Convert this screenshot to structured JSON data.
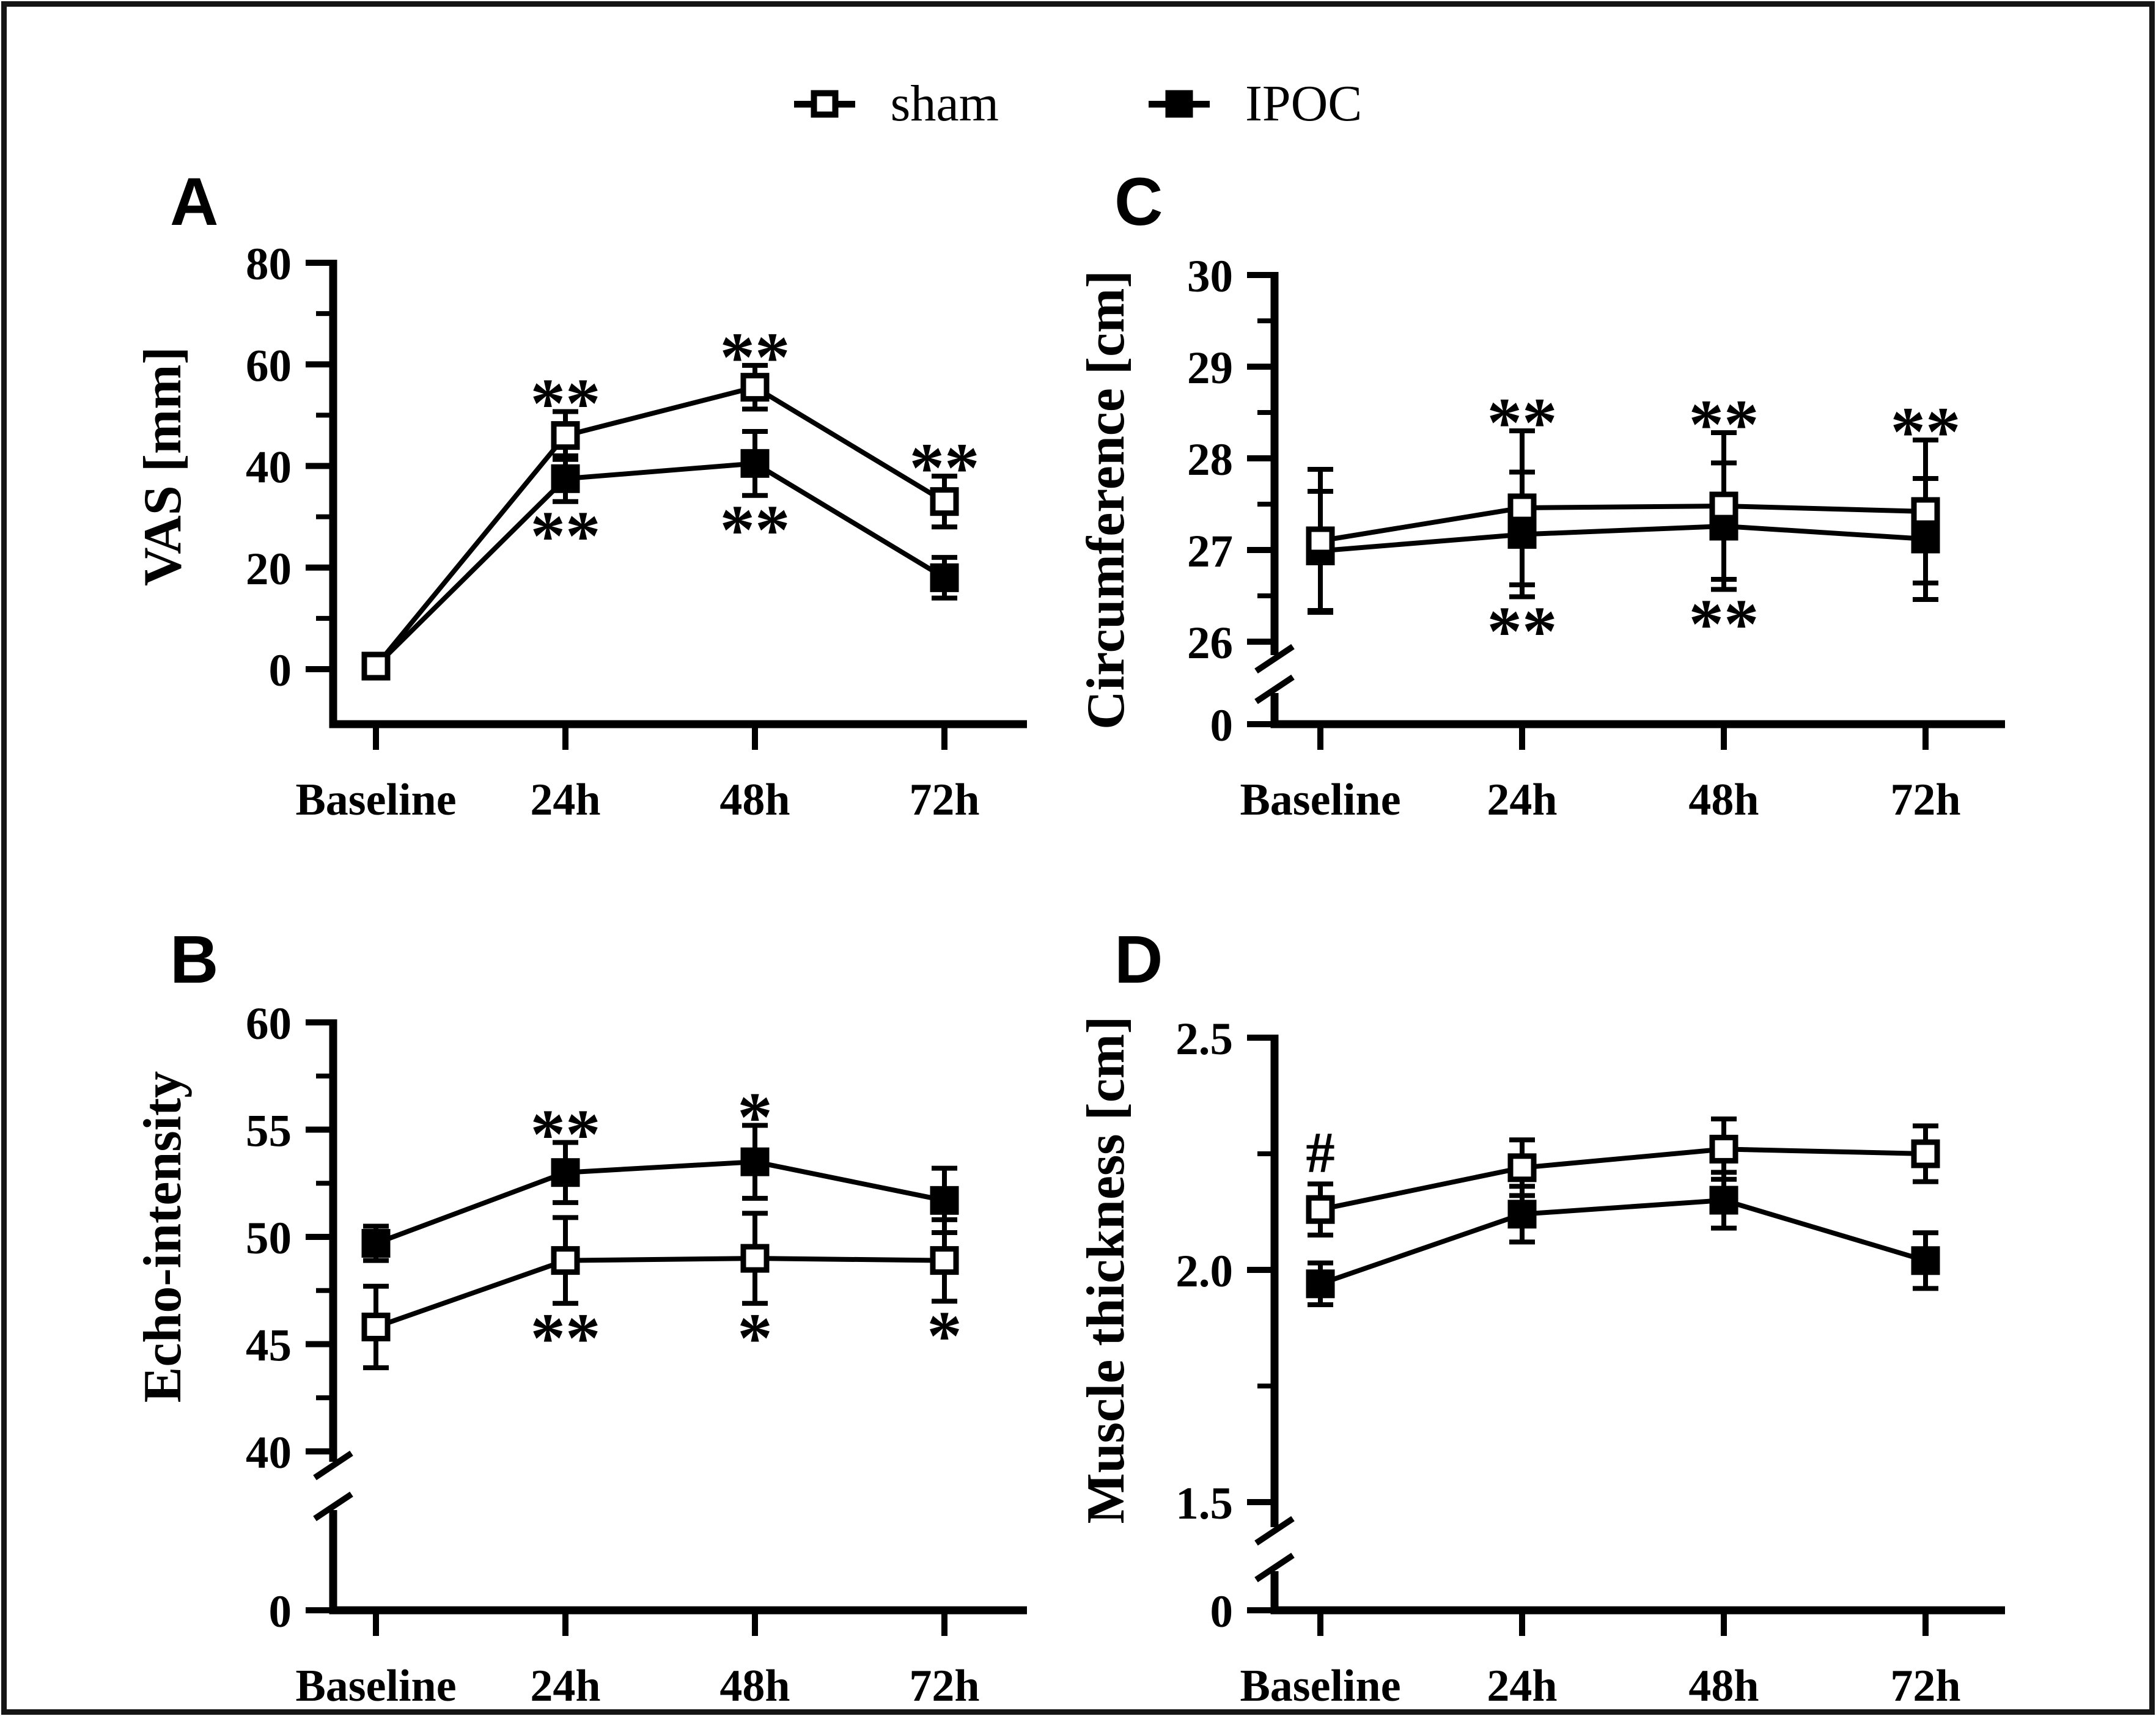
{
  "legend": {
    "items": [
      {
        "label": "sham",
        "marker": "open-square"
      },
      {
        "label": "IPOC",
        "marker": "filled-square"
      }
    ]
  },
  "chart_data": [
    {
      "type": "line",
      "panel_label": "A",
      "ylabel": "VAS [mm]",
      "categories": [
        "Baseline",
        "24h",
        "48h",
        "72h"
      ],
      "axis": {
        "segment": [
          0,
          80
        ],
        "major_step": 20,
        "minor_step": 10,
        "tick_labels": [
          "0",
          "20",
          "40",
          "60",
          "80"
        ],
        "axis_break": false,
        "zero_label": null
      },
      "series": [
        {
          "name": "sham",
          "marker": "open-square",
          "values": [
            0.6,
            46,
            55.5,
            33
          ],
          "errors": [
            1.2,
            4.7,
            4.3,
            5
          ]
        },
        {
          "name": "IPOC",
          "marker": "filled-square",
          "values": [
            0.6,
            37.5,
            40.5,
            18
          ],
          "errors": [
            1.2,
            4.5,
            6.3,
            4
          ]
        }
      ],
      "annotations": [
        {
          "category": "24h",
          "series": "sham",
          "position": "above",
          "text": "**"
        },
        {
          "category": "48h",
          "series": "sham",
          "position": "above",
          "text": "**"
        },
        {
          "category": "72h",
          "series": "sham",
          "position": "above",
          "text": "**"
        },
        {
          "category": "24h",
          "series": "IPOC",
          "position": "below",
          "text": "**"
        },
        {
          "category": "48h",
          "series": "IPOC",
          "position": "below",
          "text": "**"
        }
      ]
    },
    {
      "type": "line",
      "panel_label": "B",
      "ylabel": "Echo-intensity",
      "categories": [
        "Baseline",
        "24h",
        "48h",
        "72h"
      ],
      "axis": {
        "segment": [
          40,
          60
        ],
        "major_step": 5,
        "minor_step": 2.5,
        "tick_labels": [
          "40",
          "45",
          "50",
          "55",
          "60"
        ],
        "axis_break": true,
        "zero_label": "0"
      },
      "series": [
        {
          "name": "sham",
          "marker": "open-square",
          "values": [
            45.8,
            48.9,
            49.0,
            48.9
          ],
          "errors": [
            1.9,
            2.0,
            2.1,
            1.9
          ]
        },
        {
          "name": "IPOC",
          "marker": "filled-square",
          "values": [
            49.7,
            53.0,
            53.5,
            51.7
          ],
          "errors": [
            0.8,
            1.4,
            1.7,
            1.5
          ]
        }
      ],
      "annotations": [
        {
          "category": "24h",
          "series": "IPOC",
          "position": "above",
          "text": "**"
        },
        {
          "category": "48h",
          "series": "IPOC",
          "position": "above",
          "text": "*"
        },
        {
          "category": "24h",
          "series": "sham",
          "position": "below",
          "text": "**"
        },
        {
          "category": "48h",
          "series": "sham",
          "position": "below",
          "text": "*"
        },
        {
          "category": "72h",
          "series": "sham",
          "position": "below",
          "text": "*"
        }
      ]
    },
    {
      "type": "line",
      "panel_label": "C",
      "ylabel": "Circumference [cm]",
      "categories": [
        "Baseline",
        "24h",
        "48h",
        "72h"
      ],
      "axis": {
        "segment": [
          26,
          30
        ],
        "major_step": 1,
        "minor_step": 0.5,
        "tick_labels": [
          "26",
          "27",
          "28",
          "29",
          "30"
        ],
        "axis_break": true,
        "zero_label": "0"
      },
      "series": [
        {
          "name": "sham",
          "marker": "open-square",
          "values": [
            27.1,
            27.46,
            27.48,
            27.42
          ],
          "errors": [
            0.78,
            0.84,
            0.8,
            0.78
          ]
        },
        {
          "name": "IPOC",
          "marker": "filled-square",
          "values": [
            26.99,
            27.17,
            27.26,
            27.12
          ],
          "errors": [
            0.65,
            0.68,
            0.69,
            0.66
          ]
        }
      ],
      "annotations": [
        {
          "category": "24h",
          "series": "sham",
          "position": "above",
          "text": "**"
        },
        {
          "category": "48h",
          "series": "sham",
          "position": "above",
          "text": "**"
        },
        {
          "category": "72h",
          "series": "sham",
          "position": "above",
          "text": "**"
        },
        {
          "category": "24h",
          "series": "IPOC",
          "position": "below",
          "text": "**"
        },
        {
          "category": "48h",
          "series": "IPOC",
          "position": "below",
          "text": "**"
        }
      ]
    },
    {
      "type": "line",
      "panel_label": "D",
      "ylabel": "Muscle thickness [cm]",
      "categories": [
        "Baseline",
        "24h",
        "48h",
        "72h"
      ],
      "axis": {
        "segment": [
          1.5,
          2.5
        ],
        "major_step": 0.5,
        "minor_step": 0.25,
        "tick_labels": [
          "1.5",
          "2.0",
          "2.5"
        ],
        "axis_break": true,
        "zero_label": "0"
      },
      "series": [
        {
          "name": "sham",
          "marker": "open-square",
          "values": [
            2.13,
            2.22,
            2.26,
            2.25
          ],
          "errors": [
            0.055,
            0.06,
            0.065,
            0.06
          ]
        },
        {
          "name": "IPOC",
          "marker": "filled-square",
          "values": [
            1.97,
            2.12,
            2.15,
            2.02
          ],
          "errors": [
            0.045,
            0.06,
            0.06,
            0.06
          ]
        }
      ],
      "annotations": [
        {
          "category": "Baseline",
          "series": "sham",
          "position": "above",
          "text": "#"
        }
      ]
    }
  ]
}
